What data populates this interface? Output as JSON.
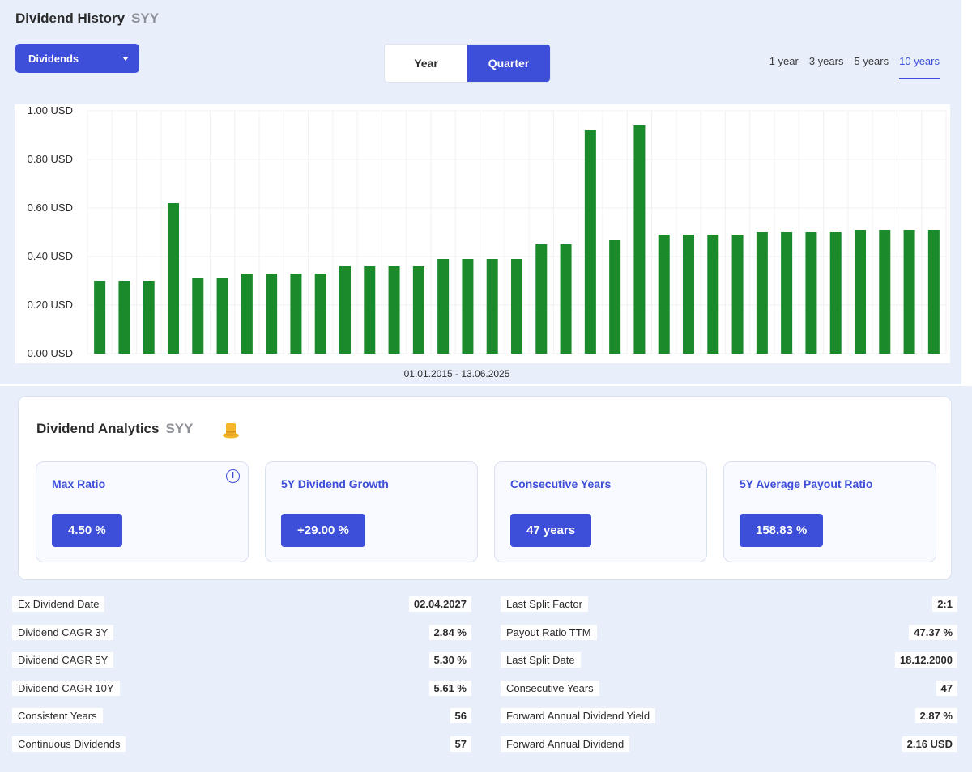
{
  "history": {
    "title": "Dividend History",
    "ticker": "SYY",
    "dropdown_label": "Dividends",
    "toggle": [
      "Year",
      "Quarter"
    ],
    "toggle_active": "Quarter",
    "ranges": [
      "1 year",
      "3 years",
      "5 years",
      "10 years"
    ],
    "range_active": "10 years",
    "date_range": "01.01.2015 - 13.06.2025"
  },
  "chart_data": {
    "type": "bar",
    "ylim": [
      0,
      1.0
    ],
    "yticks": [
      "0.00 USD",
      "0.20 USD",
      "0.40 USD",
      "0.60 USD",
      "0.80 USD",
      "1.00 USD"
    ],
    "ytick_values": [
      0,
      0.2,
      0.4,
      0.6,
      0.8,
      1.0
    ],
    "values": [
      0.3,
      0.3,
      0.3,
      0.62,
      0.31,
      0.31,
      0.33,
      0.33,
      0.33,
      0.33,
      0.36,
      0.36,
      0.36,
      0.36,
      0.39,
      0.39,
      0.39,
      0.39,
      0.45,
      0.45,
      0.92,
      0.47,
      0.94,
      0.49,
      0.49,
      0.49,
      0.49,
      0.5,
      0.5,
      0.5,
      0.5,
      0.51,
      0.51,
      0.51,
      0.51
    ],
    "bar_color": "#1a8a2a",
    "grid": true
  },
  "analytics": {
    "title": "Dividend Analytics",
    "ticker": "SYY",
    "cards": [
      {
        "label": "Max Ratio",
        "value": "4.50 %"
      },
      {
        "label": "5Y Dividend Growth",
        "value": "+29.00 %"
      },
      {
        "label": "Consecutive Years",
        "value": "47 years"
      },
      {
        "label": "5Y Average Payout Ratio",
        "value": "158.83 %"
      }
    ]
  },
  "stats_left": [
    {
      "label": "Ex Dividend Date",
      "value": "02.04.2027"
    },
    {
      "label": "Dividend CAGR 3Y",
      "value": "2.84 %"
    },
    {
      "label": "Dividend CAGR 5Y",
      "value": "5.30 %"
    },
    {
      "label": "Dividend CAGR 10Y",
      "value": "5.61 %"
    },
    {
      "label": "Consistent Years",
      "value": "56"
    },
    {
      "label": "Continuous Dividends",
      "value": "57"
    }
  ],
  "stats_right": [
    {
      "label": "Last Split Factor",
      "value": "2:1"
    },
    {
      "label": "Payout Ratio TTM",
      "value": "47.37 %"
    },
    {
      "label": "Last Split Date",
      "value": "18.12.2000"
    },
    {
      "label": "Consecutive Years",
      "value": "47"
    },
    {
      "label": "Forward Annual Dividend Yield",
      "value": "2.87 %"
    },
    {
      "label": "Forward Annual Dividend",
      "value": "2.16 USD"
    }
  ],
  "colors": {
    "accent": "#3d4ed8",
    "panel_bg": "#e8effb",
    "bar": "#1a8a2a"
  }
}
